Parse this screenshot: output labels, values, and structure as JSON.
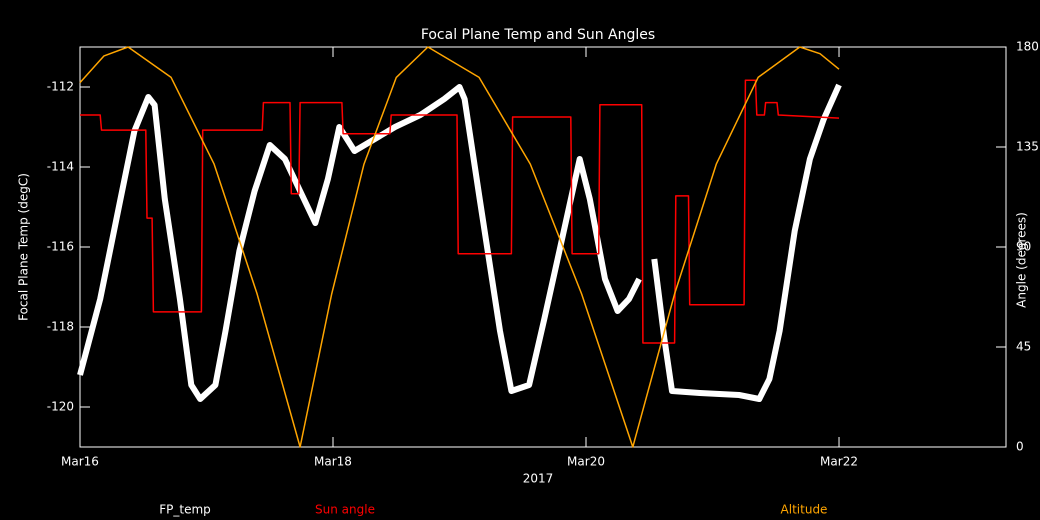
{
  "chart_data": {
    "type": "line",
    "title": "Focal Plane Temp and Sun Angles",
    "xlabel": "2017",
    "ylabel": "Focal Plane Temp (degC)",
    "y2label": "Angle (degrees)",
    "xlim": [
      0,
      7.32
    ],
    "xticks": [
      {
        "value": 0,
        "label": "Mar16"
      },
      {
        "value": 2,
        "label": "Mar18"
      },
      {
        "value": 4,
        "label": "Mar20"
      },
      {
        "value": 6,
        "label": "Mar22"
      }
    ],
    "ylim": [
      -121,
      -111
    ],
    "yticks": [
      -120,
      -118,
      -116,
      -114,
      -112
    ],
    "y2lim": [
      0,
      180
    ],
    "y2ticks": [
      0,
      45,
      90,
      135,
      180
    ],
    "series": [
      {
        "name": "FP_temp",
        "color": "#ffffff",
        "x": [
          0,
          0.16,
          0.32,
          0.43,
          0.54,
          0.59,
          0.67,
          0.79,
          0.88,
          0.95,
          1.07,
          1.15,
          1.26,
          1.38,
          1.5,
          1.62,
          1.74,
          1.86,
          1.96,
          2.05,
          2.17,
          2.33,
          2.49,
          2.69,
          2.88,
          3.0,
          3.04,
          3.16,
          3.32,
          3.41,
          3.55,
          3.67,
          3.79,
          3.95,
          4.03,
          4.15,
          4.25,
          4.34,
          4.42,
          4.48,
          4.54,
          4.62,
          4.68,
          4.9,
          5.21,
          5.37,
          5.45,
          5.53,
          5.65,
          5.77,
          5.88,
          6.0
        ],
        "values": [
          -119.2,
          -117.3,
          -114.8,
          -113.1,
          -112.25,
          -112.45,
          -114.8,
          -117.3,
          -119.45,
          -119.8,
          -119.45,
          -118.1,
          -116.1,
          -114.6,
          -113.45,
          -113.8,
          -114.6,
          -115.4,
          -114.3,
          -113.0,
          -113.6,
          -113.3,
          -113.0,
          -112.7,
          -112.3,
          -112.0,
          -112.3,
          -114.8,
          -118.1,
          -119.6,
          -119.45,
          -117.8,
          -116.1,
          -113.8,
          -114.8,
          -116.8,
          -117.6,
          -117.3,
          -116.8,
          null,
          -116.3,
          -118.3,
          -119.6,
          -119.65,
          -119.7,
          -119.8,
          -119.3,
          -118.1,
          -115.6,
          -113.8,
          -112.8,
          -111.95
        ]
      },
      {
        "name": "Sun angle",
        "color": "#ff0000",
        "axis": "y2",
        "x": [
          0,
          0.16,
          0.17,
          0.52,
          0.53,
          0.57,
          0.58,
          0.96,
          0.97,
          1.44,
          1.45,
          1.66,
          1.67,
          1.73,
          1.74,
          2.07,
          2.08,
          2.45,
          2.46,
          2.98,
          2.99,
          3.41,
          3.42,
          3.88,
          3.89,
          4.1,
          4.11,
          4.44,
          4.45,
          4.7,
          4.71,
          4.81,
          4.82,
          5.25,
          5.26,
          5.34,
          5.35,
          5.41,
          5.42,
          5.51,
          5.52,
          6.0
        ],
        "values": [
          149.4,
          149.4,
          142.6,
          142.6,
          103,
          103,
          60.8,
          60.8,
          142.6,
          142.6,
          155,
          155,
          114,
          114,
          155,
          155,
          141,
          141,
          149.4,
          149.4,
          87,
          87,
          148.5,
          148.5,
          87,
          87,
          154,
          154,
          46.8,
          46.8,
          113,
          113,
          64,
          64,
          165,
          165,
          149.4,
          149.4,
          155,
          155,
          149.4,
          148
        ]
      },
      {
        "name": "Altitude",
        "color": "#ffa500",
        "axis": "y2",
        "x": [
          0,
          0.19,
          0.38,
          0.72,
          1.06,
          1.4,
          1.74,
          1.99,
          2.245,
          2.5,
          2.75,
          3.155,
          3.56,
          3.965,
          4.37,
          4.7,
          5.03,
          5.36,
          5.69,
          5.85,
          6.0
        ],
        "values": [
          164,
          176,
          180,
          166.3,
          127.3,
          68.9,
          0,
          68.9,
          127.3,
          166.3,
          180,
          166.3,
          127.3,
          68.9,
          0,
          68.9,
          127.3,
          166.3,
          180,
          177,
          170
        ]
      }
    ]
  }
}
